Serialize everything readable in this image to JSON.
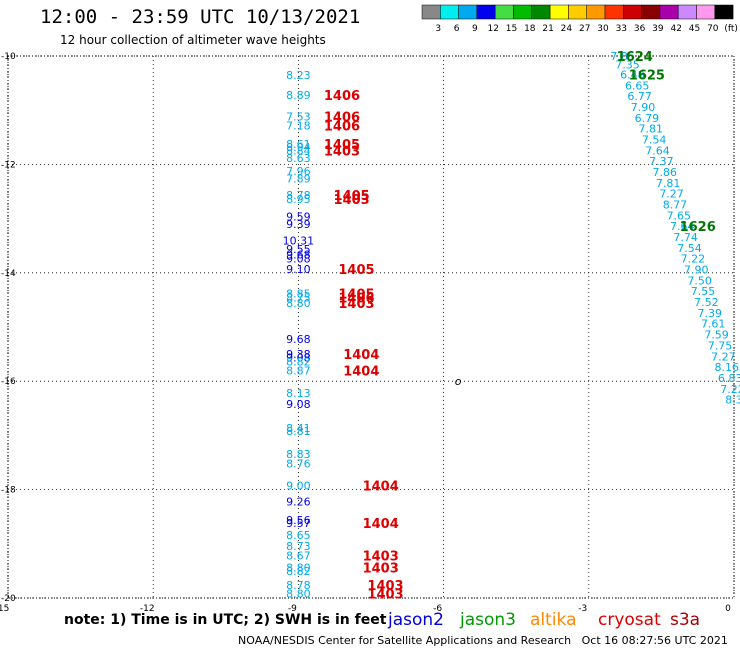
{
  "header": {
    "title": "12:00 - 23:59 UTC 10/13/2021",
    "subtitle": "12 hour collection of altimeter wave heights"
  },
  "footer": {
    "note": "note: 1) Time is in UTC; 2) SWH is in feet",
    "credit": "NOAA/NESDIS Center for Satellite Applications and Research",
    "timestamp": "Oct 16 08:27:56 UTC 2021"
  },
  "satellites": [
    {
      "name": "jason2",
      "color": "#0000dd"
    },
    {
      "name": "jason3",
      "color": "#009900"
    },
    {
      "name": "altika",
      "color": "#ff8800"
    },
    {
      "name": "cryosat",
      "color": "#dd0000"
    },
    {
      "name": "s3a",
      "color": "#aa0000"
    }
  ],
  "chart_data": {
    "type": "scatter",
    "xlim": [
      -15,
      0
    ],
    "ylim": [
      -20,
      -10
    ],
    "xticks": [
      "-15",
      "-12",
      "-9",
      "-6",
      "-3",
      "0"
    ],
    "yticks": [
      "-10",
      "-12",
      "-14",
      "-16",
      "-18",
      "-20"
    ],
    "grid": true,
    "colorbar": {
      "labels": [
        "3",
        "6",
        "9",
        "12",
        "15",
        "18",
        "21",
        "24",
        "27",
        "30",
        "33",
        "36",
        "39",
        "42",
        "45",
        "70",
        "(ft)"
      ],
      "colors": [
        "#888888",
        "#00eeee",
        "#00aaee",
        "#0000ee",
        "#44dd44",
        "#00bb00",
        "#008800",
        "#ffff00",
        "#ffcc00",
        "#ff9900",
        "#ff3300",
        "#cc0000",
        "#880000",
        "#aa00aa",
        "#cc88ff",
        "#ff99ee",
        "#000000"
      ]
    },
    "points": [
      {
        "x": -9.0,
        "y": -10.35,
        "v": "8.23",
        "c": "#00aaee"
      },
      {
        "x": -9.0,
        "y": -10.72,
        "v": "8.89",
        "c": "#00aaee"
      },
      {
        "x": -9.0,
        "y": -11.12,
        "v": "7.53",
        "c": "#00aaee"
      },
      {
        "x": -9.0,
        "y": -11.28,
        "v": "7.18",
        "c": "#00aaee"
      },
      {
        "x": -9.0,
        "y": -11.62,
        "v": "8.61",
        "c": "#00aaee"
      },
      {
        "x": -9.0,
        "y": -11.68,
        "v": "8.94",
        "c": "#00aaee"
      },
      {
        "x": -9.0,
        "y": -11.74,
        "v": "8.84",
        "c": "#00aaee"
      },
      {
        "x": -9.0,
        "y": -11.88,
        "v": "8.63",
        "c": "#00aaee"
      },
      {
        "x": -9.0,
        "y": -12.12,
        "v": "7.96",
        "c": "#00aaee"
      },
      {
        "x": -9.0,
        "y": -12.26,
        "v": "7.89",
        "c": "#00aaee"
      },
      {
        "x": -9.0,
        "y": -12.56,
        "v": "8.78",
        "c": "#00aaee"
      },
      {
        "x": -9.0,
        "y": -12.64,
        "v": "8.95",
        "c": "#00aaee"
      },
      {
        "x": -9.0,
        "y": -12.96,
        "v": "9.59",
        "c": "#0000ee"
      },
      {
        "x": -9.0,
        "y": -13.1,
        "v": "9.39",
        "c": "#0000ee"
      },
      {
        "x": -9.0,
        "y": -13.4,
        "v": "10.31",
        "c": "#0000ee"
      },
      {
        "x": -9.0,
        "y": -13.56,
        "v": "9.55",
        "c": "#0000ee"
      },
      {
        "x": -9.0,
        "y": -13.66,
        "v": "9.68",
        "c": "#0000ee"
      },
      {
        "x": -9.0,
        "y": -13.74,
        "v": "9.08",
        "c": "#0000ee"
      },
      {
        "x": -9.0,
        "y": -13.93,
        "v": "9.10",
        "c": "#0000ee"
      },
      {
        "x": -9.0,
        "y": -14.38,
        "v": "8.85",
        "c": "#00aaee"
      },
      {
        "x": -9.0,
        "y": -14.46,
        "v": "8.75",
        "c": "#00aaee"
      },
      {
        "x": -9.0,
        "y": -14.56,
        "v": "8.80",
        "c": "#00aaee"
      },
      {
        "x": -9.0,
        "y": -15.22,
        "v": "9.68",
        "c": "#0000ee"
      },
      {
        "x": -9.0,
        "y": -15.5,
        "v": "9.38",
        "c": "#0000ee"
      },
      {
        "x": -9.0,
        "y": -15.56,
        "v": "9.08",
        "c": "#0000ee"
      },
      {
        "x": -9.0,
        "y": -15.64,
        "v": "8.82",
        "c": "#00aaee"
      },
      {
        "x": -9.0,
        "y": -15.8,
        "v": "8.87",
        "c": "#00aaee"
      },
      {
        "x": -9.0,
        "y": -16.22,
        "v": "8.13",
        "c": "#00aaee"
      },
      {
        "x": -9.0,
        "y": -16.42,
        "v": "9.08",
        "c": "#0000ee"
      },
      {
        "x": -9.0,
        "y": -16.86,
        "v": "8.41",
        "c": "#00aaee"
      },
      {
        "x": -9.0,
        "y": -16.92,
        "v": "8.81",
        "c": "#00aaee"
      },
      {
        "x": -9.0,
        "y": -17.34,
        "v": "8.83",
        "c": "#00aaee"
      },
      {
        "x": -9.0,
        "y": -17.52,
        "v": "8.76",
        "c": "#00aaee"
      },
      {
        "x": -9.0,
        "y": -17.92,
        "v": "9.00",
        "c": "#00aaee"
      },
      {
        "x": -9.0,
        "y": -18.22,
        "v": "9.26",
        "c": "#0000ee"
      },
      {
        "x": -9.0,
        "y": -18.56,
        "v": "9.56",
        "c": "#0000ee"
      },
      {
        "x": -9.0,
        "y": -18.62,
        "v": "9.57",
        "c": "#0000ee"
      },
      {
        "x": -9.0,
        "y": -18.84,
        "v": "8.65",
        "c": "#00aaee"
      },
      {
        "x": -9.0,
        "y": -19.04,
        "v": "8.73",
        "c": "#00aaee"
      },
      {
        "x": -9.0,
        "y": -19.22,
        "v": "8.67",
        "c": "#00aaee"
      },
      {
        "x": -9.0,
        "y": -19.44,
        "v": "8.80",
        "c": "#00aaee"
      },
      {
        "x": -9.0,
        "y": -19.5,
        "v": "8.82",
        "c": "#00aaee"
      },
      {
        "x": -9.0,
        "y": -19.76,
        "v": "8.78",
        "c": "#00aaee"
      },
      {
        "x": -9.0,
        "y": -19.92,
        "v": "8.80",
        "c": "#00aaee"
      },
      {
        "x": -2.3,
        "y": -10.0,
        "v": "7.85",
        "c": "#00aaee"
      },
      {
        "x": -2.2,
        "y": -10.16,
        "v": "7.35",
        "c": "#00aaee"
      },
      {
        "x": -2.1,
        "y": -10.34,
        "v": "6.48",
        "c": "#00aaee"
      },
      {
        "x": -2.0,
        "y": -10.54,
        "v": "6.65",
        "c": "#00aaee"
      },
      {
        "x": -1.95,
        "y": -10.74,
        "v": "6.77",
        "c": "#00aaee"
      },
      {
        "x": -1.88,
        "y": -10.94,
        "v": "7.90",
        "c": "#00aaee"
      },
      {
        "x": -1.8,
        "y": -11.14,
        "v": "6.79",
        "c": "#00aaee"
      },
      {
        "x": -1.72,
        "y": -11.34,
        "v": "7.81",
        "c": "#00aaee"
      },
      {
        "x": -1.65,
        "y": -11.54,
        "v": "7.54",
        "c": "#00aaee"
      },
      {
        "x": -1.58,
        "y": -11.74,
        "v": "7.64",
        "c": "#00aaee"
      },
      {
        "x": -1.5,
        "y": -11.94,
        "v": "7.37",
        "c": "#00aaee"
      },
      {
        "x": -1.43,
        "y": -12.14,
        "v": "7.86",
        "c": "#00aaee"
      },
      {
        "x": -1.36,
        "y": -12.34,
        "v": "7.81",
        "c": "#00aaee"
      },
      {
        "x": -1.29,
        "y": -12.54,
        "v": "7.27",
        "c": "#00aaee"
      },
      {
        "x": -1.22,
        "y": -12.74,
        "v": "8.77",
        "c": "#00aaee"
      },
      {
        "x": -1.14,
        "y": -12.94,
        "v": "7.65",
        "c": "#00aaee"
      },
      {
        "x": -1.07,
        "y": -13.14,
        "v": "7.64",
        "c": "#00aaee"
      },
      {
        "x": -1.0,
        "y": -13.34,
        "v": "7.74",
        "c": "#00aaee"
      },
      {
        "x": -0.92,
        "y": -13.54,
        "v": "7.54",
        "c": "#00aaee"
      },
      {
        "x": -0.85,
        "y": -13.74,
        "v": "7.22",
        "c": "#00aaee"
      },
      {
        "x": -0.78,
        "y": -13.94,
        "v": "7.90",
        "c": "#00aaee"
      },
      {
        "x": -0.71,
        "y": -14.14,
        "v": "7.50",
        "c": "#00aaee"
      },
      {
        "x": -0.64,
        "y": -14.34,
        "v": "7.55",
        "c": "#00aaee"
      },
      {
        "x": -0.57,
        "y": -14.54,
        "v": "7.52",
        "c": "#00aaee"
      },
      {
        "x": -0.5,
        "y": -14.74,
        "v": "7.39",
        "c": "#00aaee"
      },
      {
        "x": -0.43,
        "y": -14.94,
        "v": "7.61",
        "c": "#00aaee"
      },
      {
        "x": -0.36,
        "y": -15.14,
        "v": "7.59",
        "c": "#00aaee"
      },
      {
        "x": -0.29,
        "y": -15.34,
        "v": "7.75",
        "c": "#00aaee"
      },
      {
        "x": -0.22,
        "y": -15.54,
        "v": "7.27",
        "c": "#00aaee"
      },
      {
        "x": -0.15,
        "y": -15.74,
        "v": "8.16",
        "c": "#00aaee"
      },
      {
        "x": -0.08,
        "y": -15.94,
        "v": "6.83",
        "c": "#00aaee"
      },
      {
        "x": -0.03,
        "y": -16.14,
        "v": "7.22",
        "c": "#00aaee"
      },
      {
        "x": 0.0,
        "y": -16.34,
        "v": "8.3",
        "c": "#00aaee"
      }
    ],
    "passes": [
      {
        "x": -8.1,
        "y": -10.72,
        "label": "1406",
        "c": "#dd0000"
      },
      {
        "x": -8.1,
        "y": -11.12,
        "label": "1406",
        "c": "#dd0000"
      },
      {
        "x": -8.1,
        "y": -11.28,
        "label": "1406",
        "c": "#dd0000"
      },
      {
        "x": -8.1,
        "y": -11.62,
        "label": "1405",
        "c": "#dd0000"
      },
      {
        "x": -8.1,
        "y": -11.74,
        "label": "1403",
        "c": "#dd0000"
      },
      {
        "x": -7.9,
        "y": -12.56,
        "label": "1405",
        "c": "#dd0000"
      },
      {
        "x": -7.9,
        "y": -12.64,
        "label": "1403",
        "c": "#dd0000"
      },
      {
        "x": -7.8,
        "y": -13.93,
        "label": "1405",
        "c": "#dd0000"
      },
      {
        "x": -7.8,
        "y": -14.38,
        "label": "1405",
        "c": "#dd0000"
      },
      {
        "x": -7.8,
        "y": -14.46,
        "label": "1406",
        "c": "#dd0000"
      },
      {
        "x": -7.8,
        "y": -14.56,
        "label": "1403",
        "c": "#dd0000"
      },
      {
        "x": -7.7,
        "y": -15.5,
        "label": "1404",
        "c": "#dd0000"
      },
      {
        "x": -7.7,
        "y": -15.8,
        "label": "1404",
        "c": "#dd0000"
      },
      {
        "x": -7.3,
        "y": -17.92,
        "label": "1404",
        "c": "#dd0000"
      },
      {
        "x": -7.3,
        "y": -18.62,
        "label": "1404",
        "c": "#dd0000"
      },
      {
        "x": -7.3,
        "y": -19.22,
        "label": "1403",
        "c": "#dd0000"
      },
      {
        "x": -7.3,
        "y": -19.44,
        "label": "1403",
        "c": "#dd0000"
      },
      {
        "x": -7.2,
        "y": -19.76,
        "label": "1403",
        "c": "#dd0000"
      },
      {
        "x": -7.2,
        "y": -19.92,
        "label": "1403",
        "c": "#dd0000"
      },
      {
        "x": -2.05,
        "y": -10.0,
        "label": "1624",
        "c": "#007700"
      },
      {
        "x": -1.8,
        "y": -10.34,
        "label": "1625",
        "c": "#007700"
      },
      {
        "x": -0.75,
        "y": -13.14,
        "label": "1626",
        "c": "#007700"
      }
    ],
    "markers": [
      {
        "x": -5.7,
        "y": -16.0,
        "label": "o",
        "c": "#000000"
      }
    ]
  }
}
